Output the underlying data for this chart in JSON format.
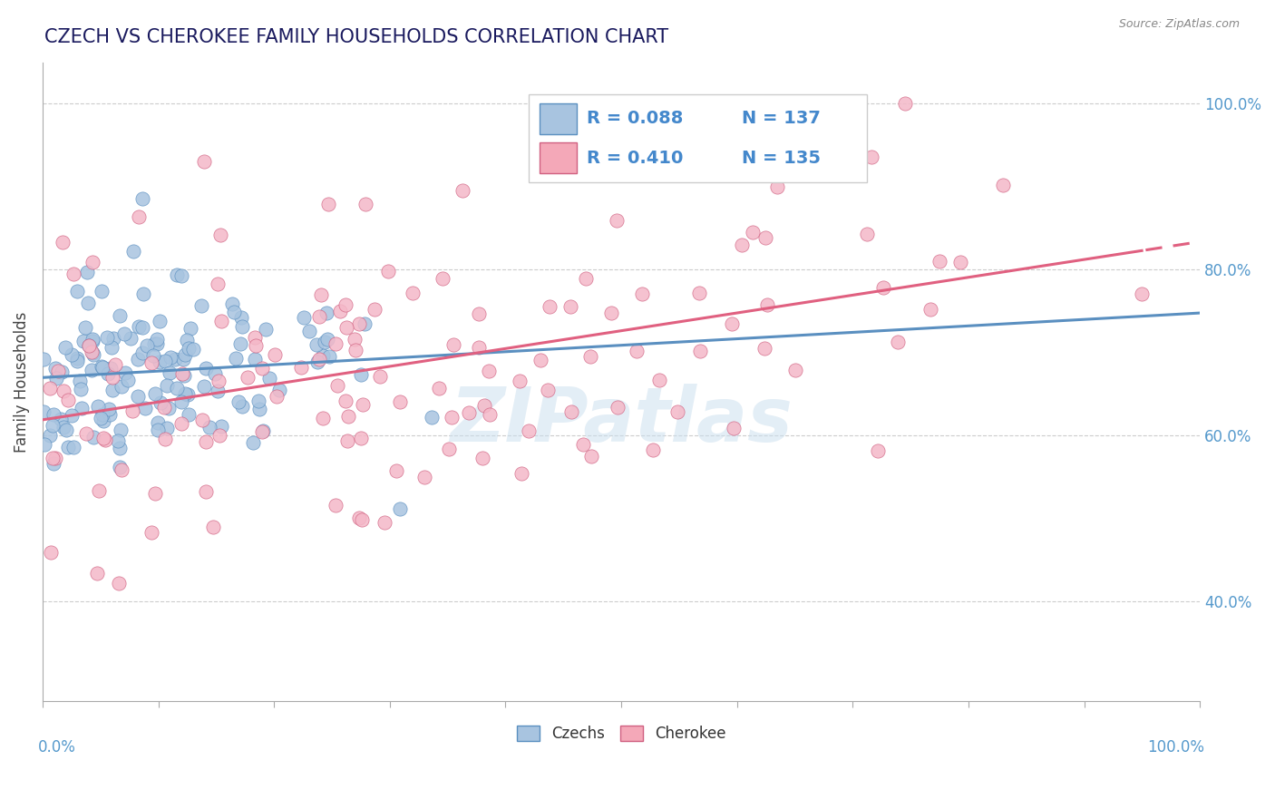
{
  "title": "CZECH VS CHEROKEE FAMILY HOUSEHOLDS CORRELATION CHART",
  "source": "Source: ZipAtlas.com",
  "ylabel": "Family Households",
  "xlim": [
    0.0,
    1.0
  ],
  "ylim": [
    0.28,
    1.05
  ],
  "legend_color1": "#a8c4e0",
  "legend_color2": "#f4a8b8",
  "scatter_color_czechs": "#a8c4e0",
  "scatter_color_cherokee": "#f4b8c8",
  "line_color_czechs": "#5a8fc0",
  "line_color_cherokee": "#e06080",
  "background_color": "#ffffff",
  "czechs_R": 0.088,
  "cherokee_R": 0.41,
  "czechs_N": 137,
  "cherokee_N": 135,
  "title_color": "#1a1a5e",
  "axis_label_color": "#5599cc",
  "legend_text_color": "#4488cc"
}
